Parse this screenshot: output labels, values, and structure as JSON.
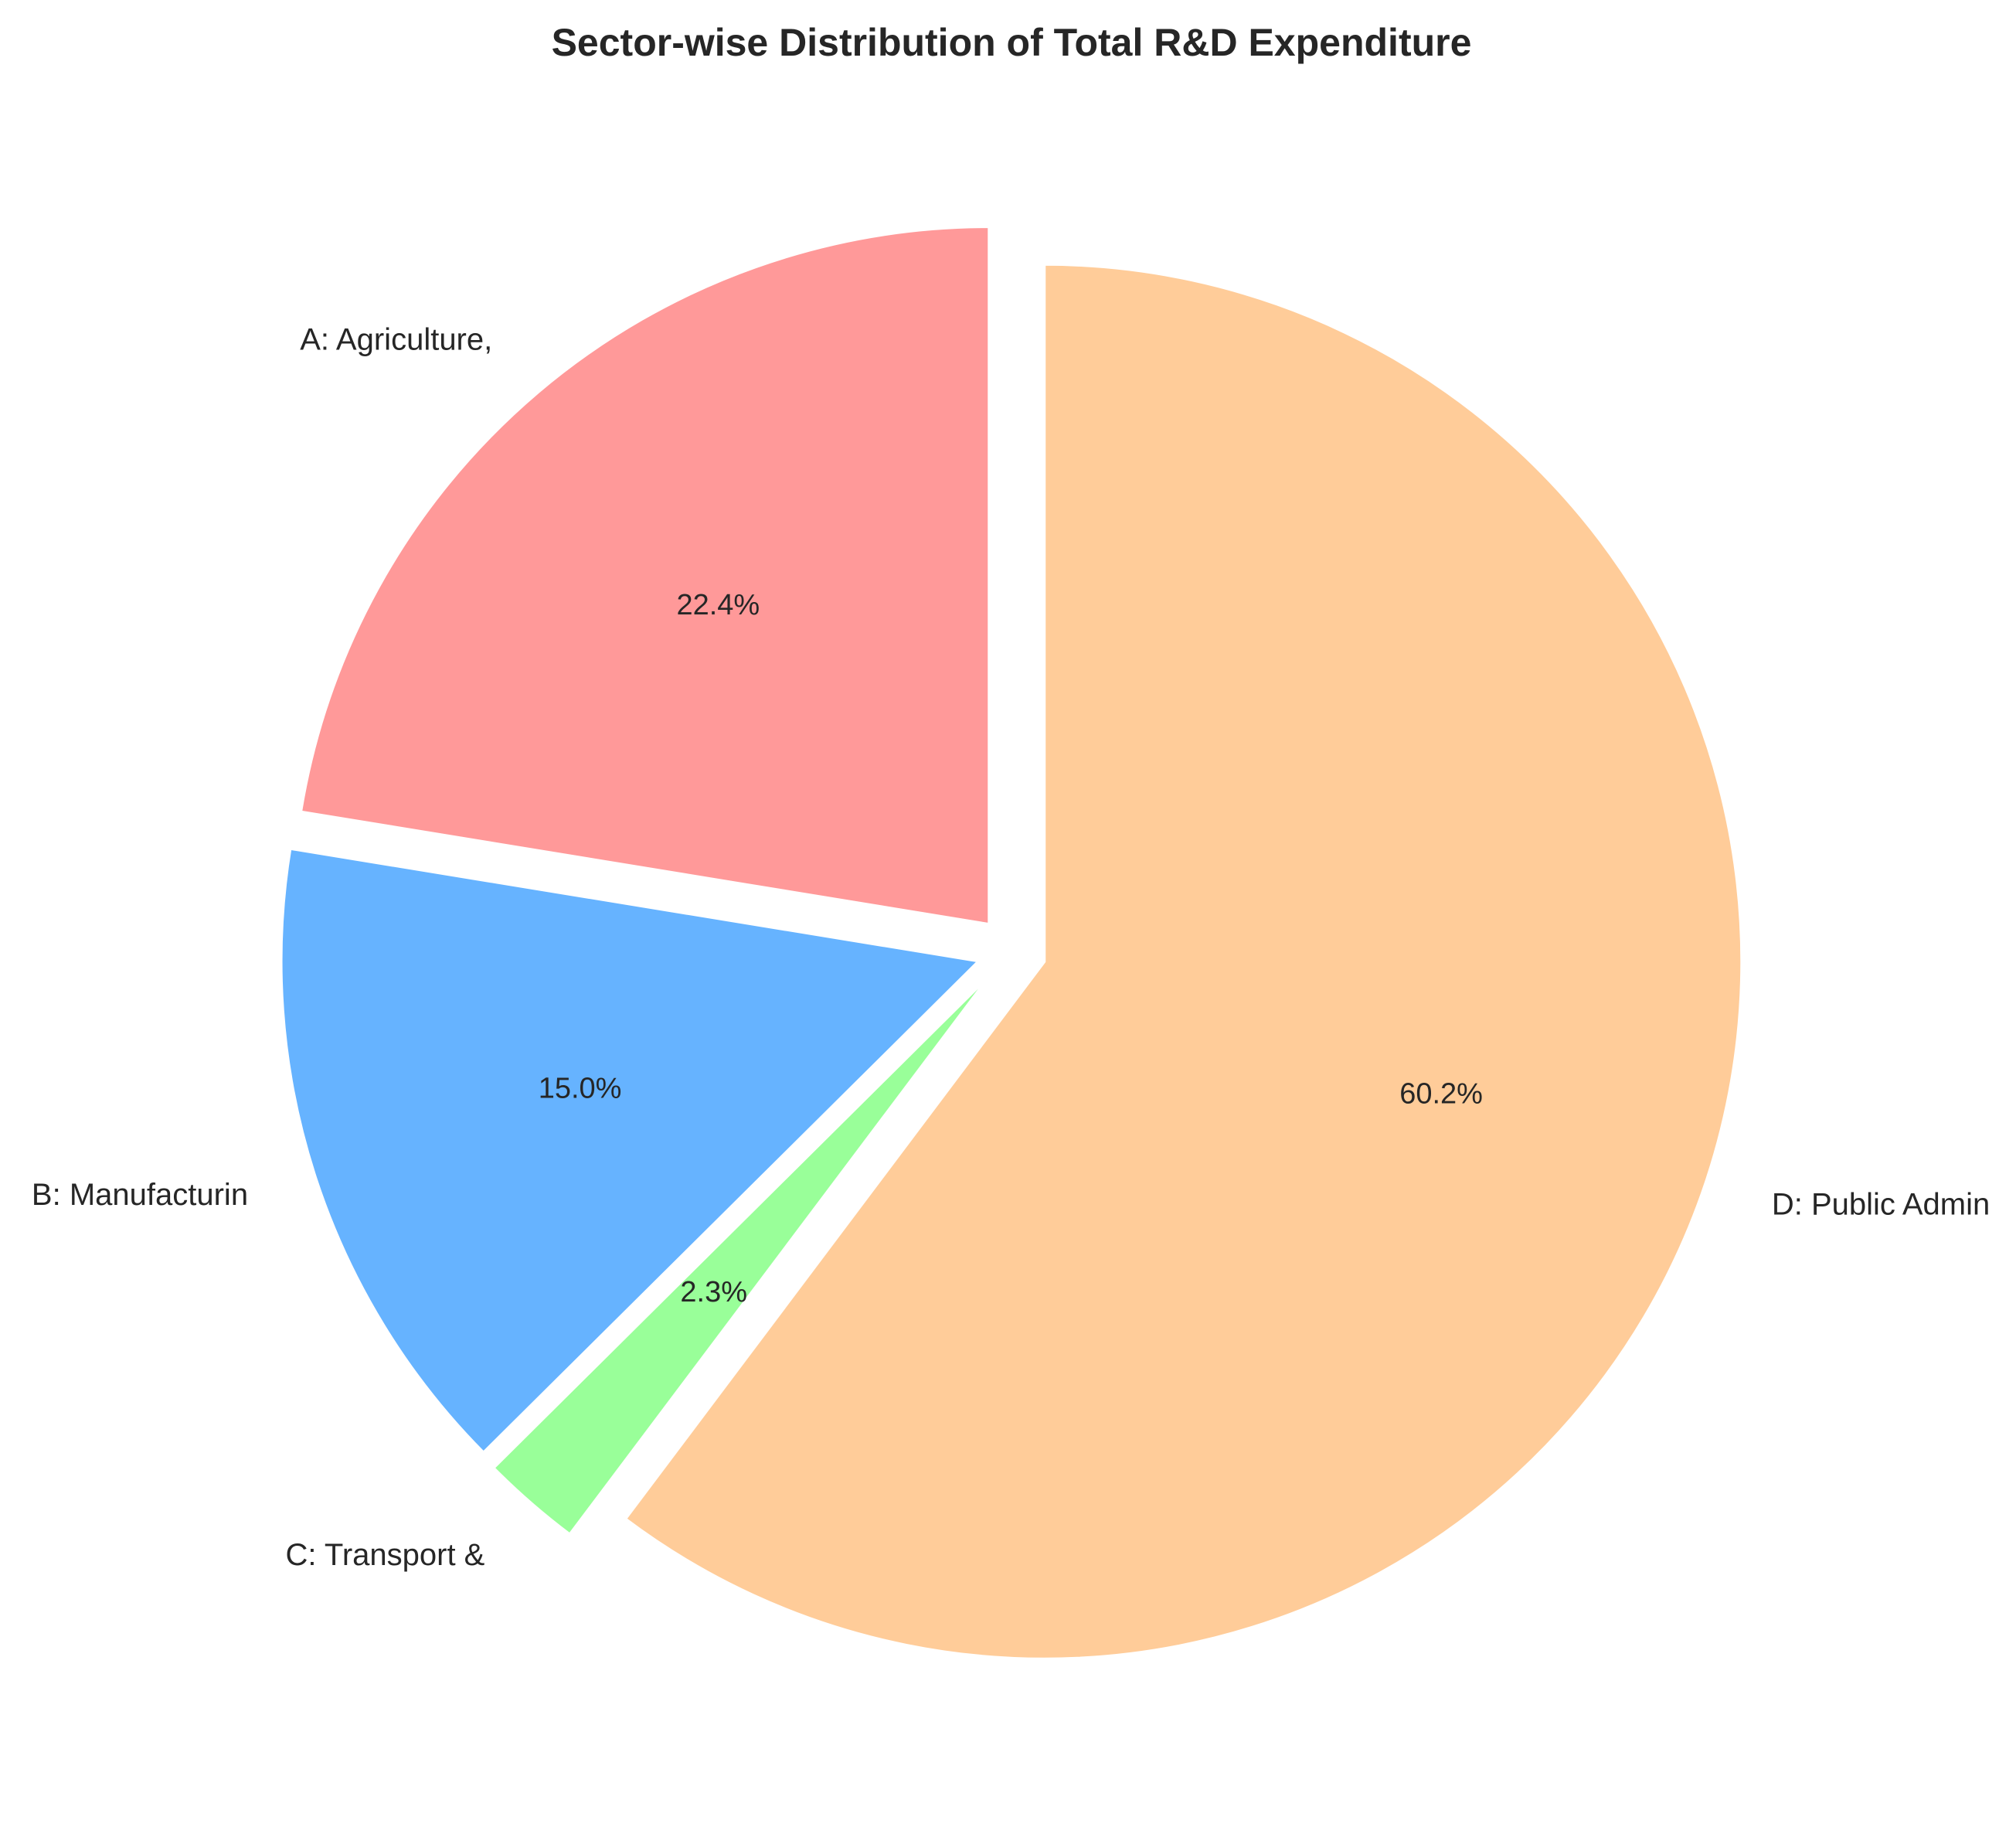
{
  "chart_data": {
    "type": "pie",
    "title": "Sector-wise Distribution of Total R&D Expenditure",
    "start_angle_deg": 90,
    "direction": "counterclockwise",
    "slices": [
      {
        "label": "A: Agriculture,",
        "value": 22.4,
        "pct_label": "22.4%",
        "color": "#ff9999",
        "explode": 0.05
      },
      {
        "label": "B: Manufacturin",
        "value": 15.0,
        "pct_label": "15.0%",
        "color": "#66b3ff",
        "explode": 0.05
      },
      {
        "label": "C: Transport &",
        "value": 2.3,
        "pct_label": "2.3%",
        "color": "#99ff99",
        "explode": 0.05
      },
      {
        "label": "D: Public Admin",
        "value": 60.2,
        "pct_label": "60.2%",
        "color": "#ffcc99",
        "explode": 0.05
      }
    ],
    "legend": "none",
    "grid": false
  }
}
